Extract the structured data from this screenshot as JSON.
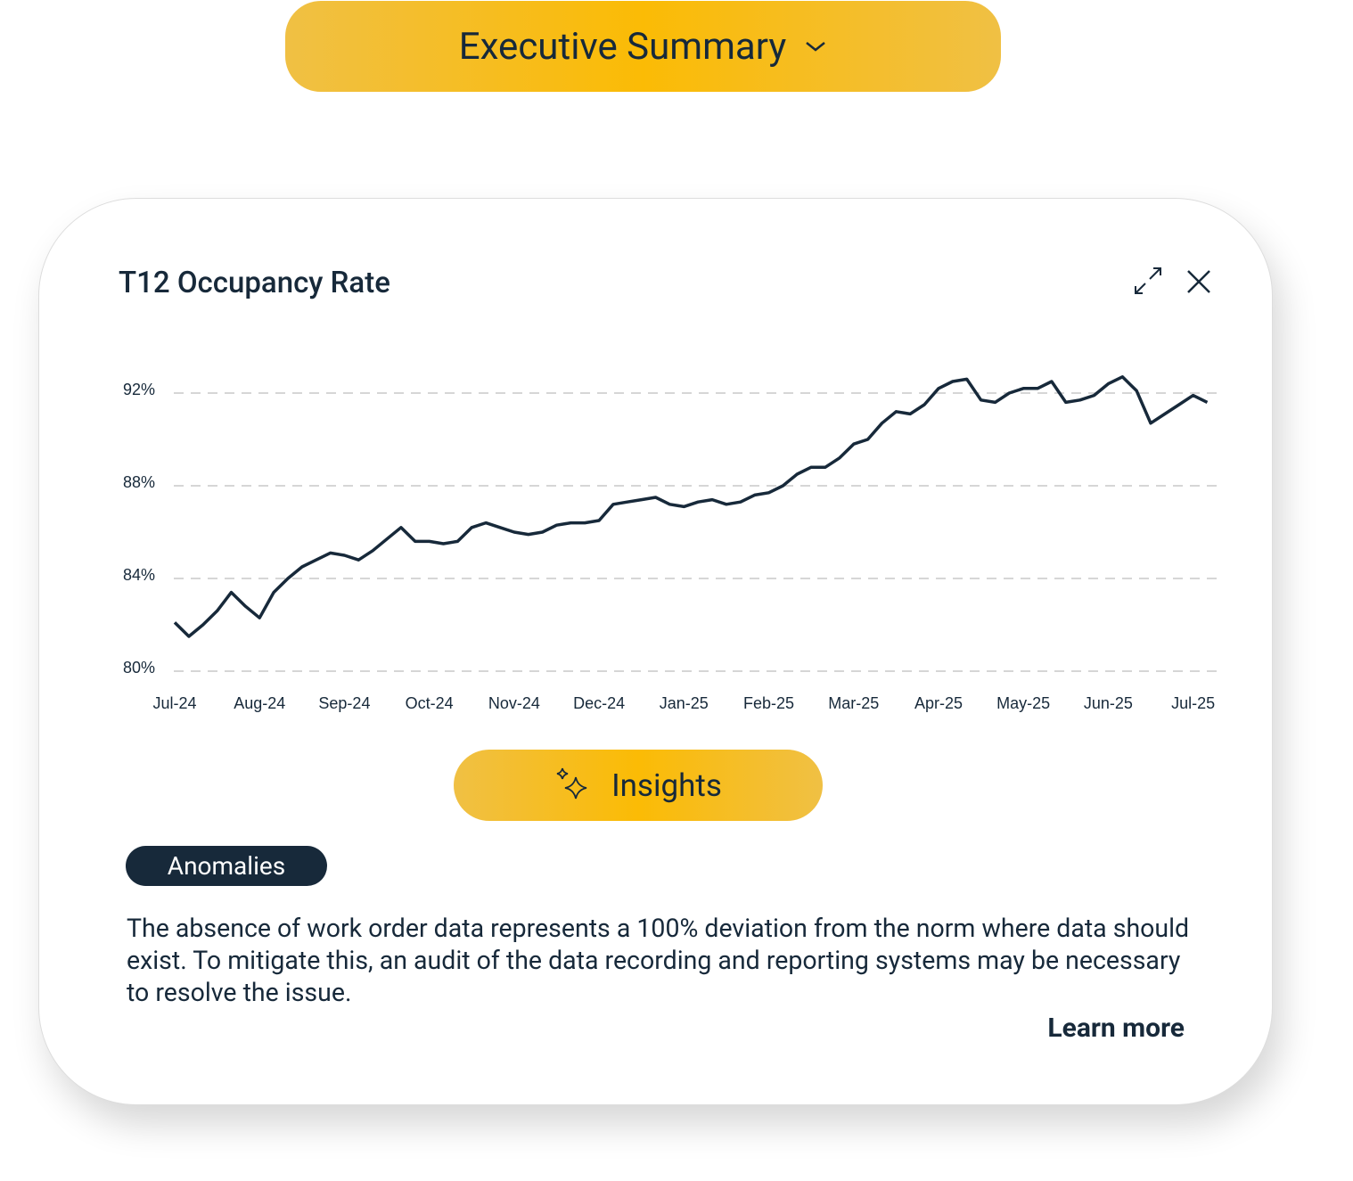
{
  "header": {
    "title": "Executive Summary"
  },
  "chart_data": {
    "type": "line",
    "title": "T12 Occupancy Rate",
    "categories": [
      "Jul-24",
      null,
      null,
      null,
      null,
      null,
      "Aug-24",
      null,
      null,
      null,
      null,
      null,
      "Sep-24",
      null,
      null,
      null,
      null,
      null,
      "Oct-24",
      null,
      null,
      null,
      null,
      null,
      "Nov-24",
      null,
      null,
      null,
      null,
      null,
      "Dec-24",
      null,
      null,
      null,
      null,
      null,
      "Jan-25",
      null,
      null,
      null,
      null,
      null,
      "Feb-25",
      null,
      null,
      null,
      null,
      null,
      "Mar-25",
      null,
      null,
      null,
      null,
      null,
      "Apr-25",
      null,
      null,
      null,
      null,
      null,
      "May-25",
      null,
      null,
      null,
      null,
      null,
      "Jun-25",
      null,
      null,
      null,
      null,
      null,
      "Jul-25",
      null
    ],
    "values": [
      82.1,
      81.5,
      82.0,
      82.6,
      83.4,
      82.8,
      82.3,
      83.4,
      84.0,
      84.5,
      84.8,
      85.1,
      85.0,
      84.8,
      85.2,
      85.7,
      86.2,
      85.6,
      85.6,
      85.5,
      85.6,
      86.2,
      86.4,
      86.2,
      86.0,
      85.9,
      86.0,
      86.3,
      86.4,
      86.4,
      86.5,
      87.2,
      87.3,
      87.4,
      87.5,
      87.2,
      87.1,
      87.3,
      87.4,
      87.2,
      87.3,
      87.6,
      87.7,
      88.0,
      88.5,
      88.8,
      88.8,
      89.2,
      89.8,
      90.0,
      90.7,
      91.2,
      91.1,
      91.5,
      92.2,
      92.5,
      92.6,
      91.7,
      91.6,
      92.0,
      92.2,
      92.2,
      92.5,
      91.6,
      91.7,
      91.9,
      92.4,
      92.7,
      92.1,
      90.7,
      91.1,
      91.5,
      91.9,
      91.6
    ],
    "color": "#17293a",
    "ylim": [
      80,
      94
    ],
    "yticks": [
      {
        "value": 80,
        "label": "80%"
      },
      {
        "value": 84,
        "label": "84%"
      },
      {
        "value": 88,
        "label": "88%"
      },
      {
        "value": 92,
        "label": "92%"
      }
    ],
    "grid": true
  },
  "insights": {
    "label": "Insights"
  },
  "anomalies": {
    "label": "Anomalies",
    "text": "The absence of work order data represents a 100% deviation from the norm where data should exist. To mitigate this, an audit of the data recording and reporting systems may be necessary to resolve the issue.",
    "link": "Learn more"
  }
}
